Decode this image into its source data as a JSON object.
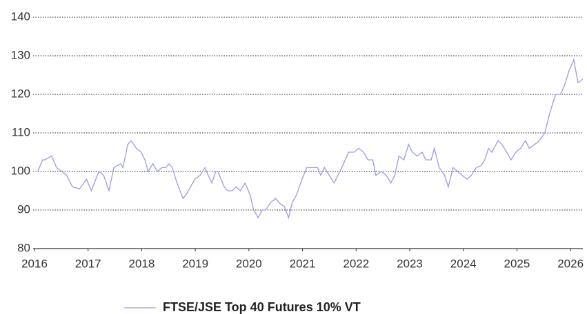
{
  "chart_data": {
    "type": "line",
    "x": [
      2016.06,
      2016.15,
      2016.19,
      2016.32,
      2016.41,
      2016.51,
      2016.6,
      2016.71,
      2016.84,
      2016.97,
      2017.06,
      2017.2,
      2017.29,
      2017.39,
      2017.48,
      2017.61,
      2017.65,
      2017.74,
      2017.8,
      2017.9,
      2017.99,
      2018.06,
      2018.12,
      2018.21,
      2018.29,
      2018.38,
      2018.45,
      2018.51,
      2018.57,
      2018.66,
      2018.77,
      2018.83,
      2018.89,
      2018.99,
      2019.09,
      2019.18,
      2019.24,
      2019.31,
      2019.38,
      2019.42,
      2019.54,
      2019.6,
      2019.69,
      2019.76,
      2019.84,
      2019.93,
      2020.02,
      2020.09,
      2020.17,
      2020.25,
      2020.31,
      2020.41,
      2020.5,
      2020.59,
      2020.66,
      2020.74,
      2020.81,
      2020.89,
      2020.99,
      2021.08,
      2021.17,
      2021.28,
      2021.34,
      2021.41,
      2021.5,
      2021.59,
      2021.66,
      2021.75,
      2021.86,
      2021.96,
      2022.05,
      2022.14,
      2022.22,
      2022.31,
      2022.37,
      2022.47,
      2022.56,
      2022.65,
      2022.72,
      2022.8,
      2022.89,
      2022.98,
      2023.05,
      2023.14,
      2023.23,
      2023.3,
      2023.4,
      2023.46,
      2023.55,
      2023.65,
      2023.72,
      2023.81,
      2023.89,
      2023.98,
      2024.07,
      2024.15,
      2024.24,
      2024.33,
      2024.4,
      2024.47,
      2024.53,
      2024.65,
      2024.72,
      2024.81,
      2024.89,
      2024.98,
      2025.07,
      2025.16,
      2025.23,
      2025.33,
      2025.42,
      2025.52,
      2025.61,
      2025.72,
      2025.81,
      2025.88,
      2025.97,
      2026.06,
      2026.14,
      2026.23
    ],
    "series": [
      {
        "name": "FTSE/JSE Top 40 Futures 10% VT",
        "color": "#9a9ae6",
        "values": [
          100,
          103,
          103,
          104,
          101,
          100,
          99,
          96,
          95.5,
          98,
          95,
          100,
          99,
          95,
          101,
          102,
          101,
          107,
          108,
          106,
          105,
          103,
          100,
          102,
          100,
          101,
          101,
          102,
          101,
          97,
          93,
          94,
          95.5,
          98,
          99,
          101,
          99,
          97,
          100,
          100,
          96,
          95,
          95,
          96,
          95,
          97,
          94,
          90,
          88,
          90,
          90,
          92,
          93,
          91.5,
          91,
          88,
          92,
          94,
          98,
          101,
          101,
          101,
          99,
          101,
          99,
          97,
          99,
          101.5,
          105,
          105,
          106,
          105,
          103,
          103,
          99,
          100,
          99,
          97,
          99,
          104,
          103,
          107,
          105,
          104,
          105,
          103,
          103,
          106,
          101,
          99,
          96,
          101,
          100,
          99,
          98,
          99,
          101,
          101.5,
          103,
          106,
          105,
          108,
          107,
          105,
          103,
          105,
          106,
          108,
          106,
          107,
          108,
          110,
          115,
          120,
          120,
          122,
          126,
          129,
          123,
          124
        ]
      }
    ],
    "xlim": [
      2016,
      2026.23
    ],
    "ylim": [
      80,
      140
    ],
    "xticks": [
      2016,
      2017,
      2018,
      2019,
      2020,
      2021,
      2022,
      2023,
      2024,
      2025,
      2026
    ],
    "yticks": [
      80,
      90,
      100,
      110,
      120,
      130,
      140
    ],
    "grid": true,
    "legend": "bottom"
  }
}
